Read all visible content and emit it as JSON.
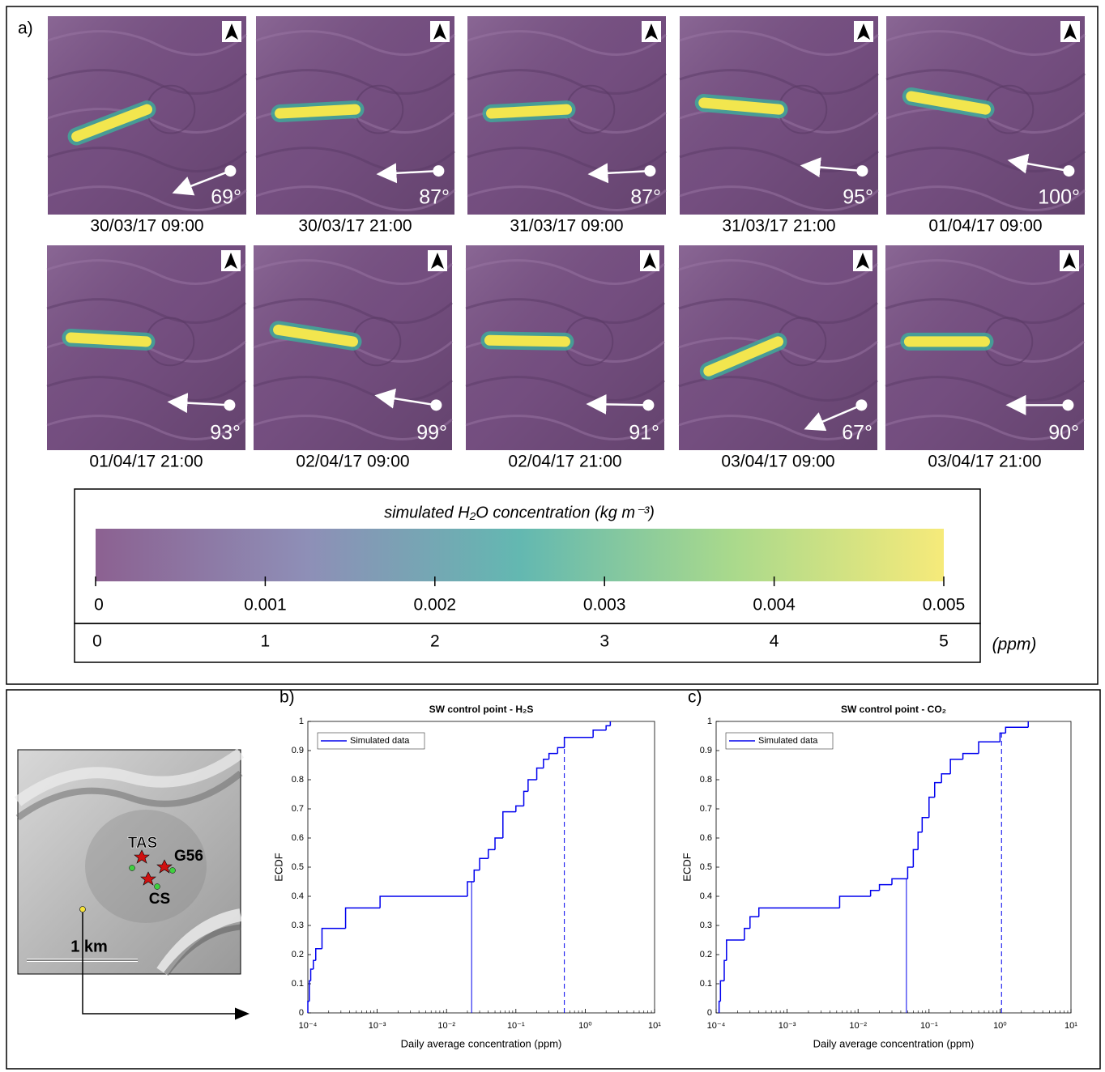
{
  "panel_a": {
    "label": "a)",
    "maps": [
      {
        "date": "30/03/17 09:00",
        "direction": {
          "value": 69,
          "label": "69°"
        }
      },
      {
        "date": "30/03/17 21:00",
        "direction": {
          "value": 87,
          "label": "87°"
        }
      },
      {
        "date": "31/03/17 09:00",
        "direction": {
          "value": 87,
          "label": "87°"
        }
      },
      {
        "date": "31/03/17 21:00",
        "direction": {
          "value": 95,
          "label": "95°"
        }
      },
      {
        "date": "01/04/17 09:00",
        "direction": {
          "value": 100,
          "label": "100°"
        }
      },
      {
        "date": "01/04/17 21:00",
        "direction": {
          "value": 93,
          "label": "93°"
        }
      },
      {
        "date": "02/04/17 09:00",
        "direction": {
          "value": 99,
          "label": "99°"
        }
      },
      {
        "date": "02/04/17 21:00",
        "direction": {
          "value": 91,
          "label": "91°"
        }
      },
      {
        "date": "03/04/17 09:00",
        "direction": {
          "value": 67,
          "label": "67°"
        }
      },
      {
        "date": "03/04/17 21:00",
        "direction": {
          "value": 90,
          "label": "90°"
        }
      }
    ],
    "colorbar": {
      "title": "simulated H₂O concentration (kg m⁻³)",
      "lim": [
        0,
        0.005
      ],
      "ticks": [
        0,
        0.001,
        0.002,
        0.003,
        0.004,
        0.005
      ],
      "ppm_lim": [
        0,
        5
      ],
      "ppm_ticks": [
        0,
        1,
        2,
        3,
        4,
        5
      ],
      "ppm_unit": "(ppm)",
      "colors": [
        "#8c6191",
        "#8e8fb7",
        "#63b8b1",
        "#a9d98c",
        "#f6ea7a"
      ]
    }
  },
  "inset_map": {
    "labels": {
      "tas": "TAS",
      "g56": "G56",
      "cs": "CS",
      "scale": "1 km"
    }
  },
  "chart_data": [
    {
      "type": "line",
      "panel": "b)",
      "title": "SW control point - H₂S",
      "xlabel": "Daily average concentration (ppm)",
      "ylabel": "ECDF",
      "xscale": "log",
      "xlim": [
        0.0001,
        10
      ],
      "ylim": [
        0,
        1
      ],
      "xticks": [
        {
          "value": 0.0001,
          "label": "10⁻⁴"
        },
        {
          "value": 0.001,
          "label": "10⁻³"
        },
        {
          "value": 0.01,
          "label": "10⁻²"
        },
        {
          "value": 0.1,
          "label": "10⁻¹"
        },
        {
          "value": 1,
          "label": "10⁰"
        },
        {
          "value": 10,
          "label": "10¹"
        }
      ],
      "yticks": [
        0,
        0.1,
        0.2,
        0.3,
        0.4,
        0.5,
        0.6,
        0.7,
        0.8,
        0.9,
        1
      ],
      "legend": "upper left",
      "series": [
        {
          "name": "Simulated data",
          "color": "#0000ee",
          "x": [
            0.0001,
            0.000105,
            0.00011,
            0.00012,
            0.00013,
            0.00016,
            0.00035,
            0.0011,
            0.02,
            0.025,
            0.03,
            0.04,
            0.05,
            0.065,
            0.1,
            0.13,
            0.15,
            0.2,
            0.25,
            0.3,
            0.4,
            0.5,
            1.3,
            2,
            2.3
          ],
          "values": [
            0.04,
            0.11,
            0.15,
            0.18,
            0.22,
            0.29,
            0.36,
            0.4,
            0.45,
            0.49,
            0.53,
            0.56,
            0.6,
            0.69,
            0.71,
            0.76,
            0.8,
            0.84,
            0.87,
            0.89,
            0.91,
            0.945,
            0.97,
            0.985,
            1
          ]
        }
      ],
      "vlines": [
        {
          "x": 0.023,
          "style": "solid"
        },
        {
          "x": 0.5,
          "style": "dashed"
        }
      ]
    },
    {
      "type": "line",
      "panel": "c)",
      "title": "SW control point - CO₂",
      "xlabel": "Daily average concentration (ppm)",
      "ylabel": "ECDF",
      "xscale": "log",
      "xlim": [
        0.0001,
        10
      ],
      "ylim": [
        0,
        1
      ],
      "xticks": [
        {
          "value": 0.0001,
          "label": "10⁻⁴"
        },
        {
          "value": 0.001,
          "label": "10⁻³"
        },
        {
          "value": 0.01,
          "label": "10⁻²"
        },
        {
          "value": 0.1,
          "label": "10⁻¹"
        },
        {
          "value": 1,
          "label": "10⁰"
        },
        {
          "value": 10,
          "label": "10¹"
        }
      ],
      "yticks": [
        0,
        0.1,
        0.2,
        0.3,
        0.4,
        0.5,
        0.6,
        0.7,
        0.8,
        0.9,
        1
      ],
      "legend": "upper left",
      "series": [
        {
          "name": "Simulated data",
          "color": "#0000ee",
          "x": [
            0.00011,
            0.000115,
            0.00013,
            0.00014,
            0.00025,
            0.0003,
            0.0004,
            0.0055,
            0.015,
            0.02,
            0.03,
            0.05,
            0.06,
            0.07,
            0.08,
            0.1,
            0.12,
            0.15,
            0.2,
            0.3,
            0.5,
            1,
            1.2,
            2.5
          ],
          "values": [
            0.04,
            0.11,
            0.18,
            0.25,
            0.29,
            0.33,
            0.36,
            0.4,
            0.42,
            0.44,
            0.46,
            0.5,
            0.56,
            0.62,
            0.67,
            0.74,
            0.79,
            0.82,
            0.87,
            0.89,
            0.93,
            0.96,
            0.98,
            1
          ]
        }
      ],
      "vlines": [
        {
          "x": 0.048,
          "style": "solid"
        },
        {
          "x": 1.05,
          "style": "dashed"
        }
      ]
    }
  ]
}
